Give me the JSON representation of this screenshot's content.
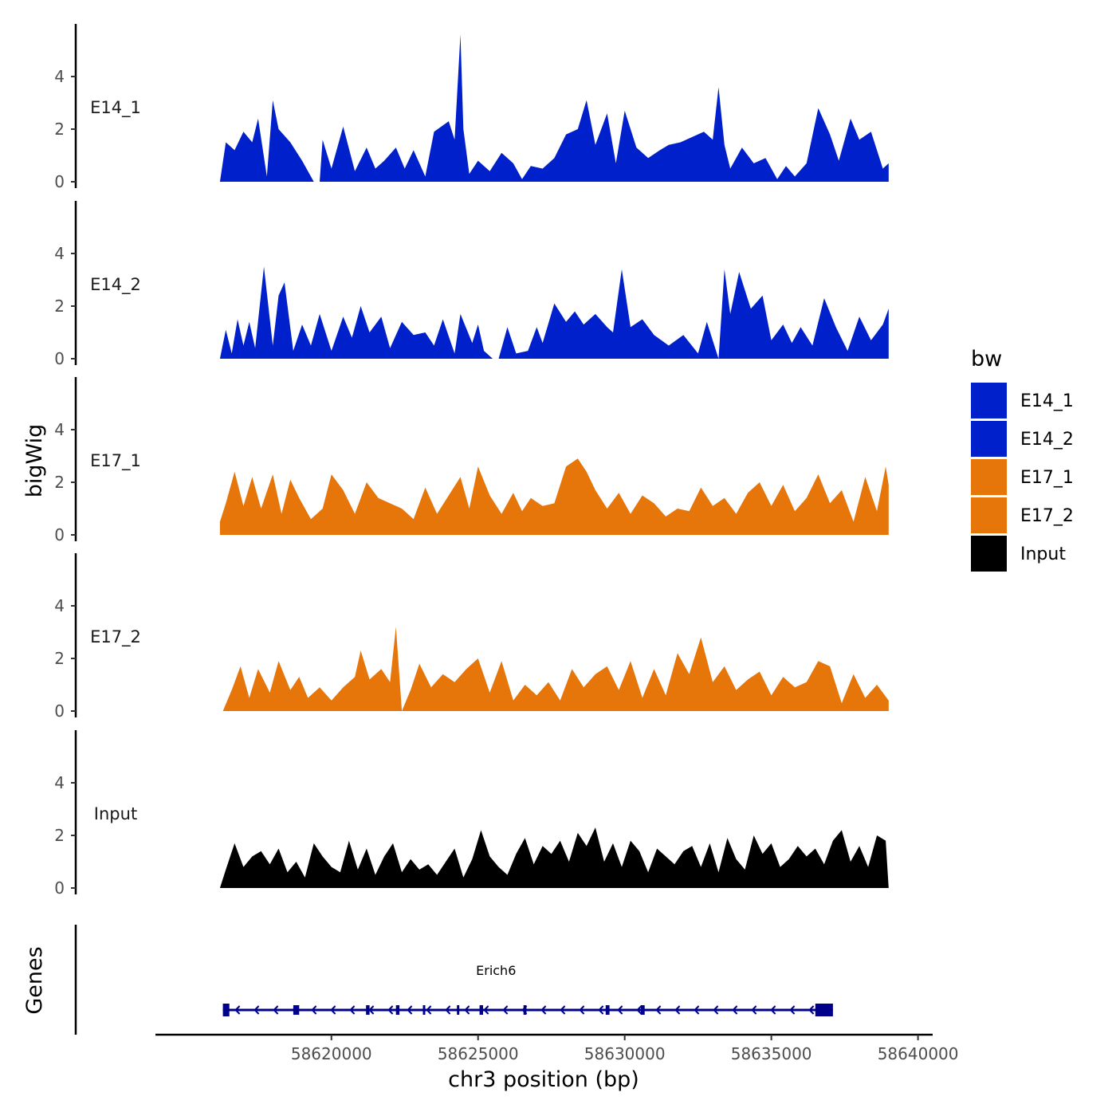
{
  "chart_data": {
    "type": "area",
    "xlabel": "chr3 position (bp)",
    "ylabel": "bigWig",
    "genes_label": "Genes",
    "xlim": [
      58614000,
      58640500
    ],
    "ylim": [
      0,
      6
    ],
    "x_ticks": [
      58620000,
      58625000,
      58630000,
      58635000,
      58640000
    ],
    "x_tick_labels": [
      "58620000",
      "58625000",
      "58630000",
      "58635000",
      "58640000"
    ],
    "y_ticks": [
      0,
      2,
      4
    ],
    "y_tick_labels": [
      "0",
      "2",
      "4"
    ],
    "legend": {
      "title": "bw",
      "position": "right",
      "entries": [
        {
          "name": "E14_1",
          "color": "#0020CC"
        },
        {
          "name": "E14_2",
          "color": "#0020CC"
        },
        {
          "name": "E17_1",
          "color": "#E6750A"
        },
        {
          "name": "E17_2",
          "color": "#E6750A"
        },
        {
          "name": "Input",
          "color": "#000000"
        }
      ]
    },
    "series": [
      {
        "name": "E14_1",
        "label": "E14_1",
        "color": "#0020CC",
        "x": [
          58616200,
          58616400,
          58616700,
          58617000,
          58617300,
          58617500,
          58617800,
          58618000,
          58618200,
          58618600,
          58619000,
          58619400,
          58619600,
          58619700,
          58620000,
          58620400,
          58620800,
          58621200,
          58621500,
          58621800,
          58622200,
          58622500,
          58622800,
          58623200,
          58623500,
          58624000,
          58624200,
          58624400,
          58624500,
          58624700,
          58625000,
          58625400,
          58625800,
          58626200,
          58626500,
          58626800,
          58627200,
          58627600,
          58628000,
          58628400,
          58628700,
          58629000,
          58629400,
          58629700,
          58630000,
          58630400,
          58630800,
          58631200,
          58631500,
          58631900,
          58632300,
          58632700,
          58633000,
          58633200,
          58633400,
          58633600,
          58634000,
          58634400,
          58634800,
          58635200,
          58635500,
          58635800,
          58636200,
          58636600,
          58637000,
          58637300,
          58637700,
          58638000,
          58638400,
          58638800,
          58639000
        ],
        "values": [
          0.0,
          1.5,
          1.2,
          1.9,
          1.5,
          2.4,
          0.2,
          3.1,
          2.0,
          1.5,
          0.8,
          0.0,
          0.0,
          1.6,
          0.5,
          2.1,
          0.4,
          1.3,
          0.5,
          0.8,
          1.3,
          0.5,
          1.2,
          0.2,
          1.9,
          2.3,
          1.6,
          5.6,
          2.0,
          0.3,
          0.8,
          0.4,
          1.1,
          0.7,
          0.1,
          0.6,
          0.5,
          0.9,
          1.8,
          2.0,
          3.1,
          1.4,
          2.6,
          0.7,
          2.7,
          1.3,
          0.9,
          1.2,
          1.4,
          1.5,
          1.7,
          1.9,
          1.6,
          3.6,
          1.4,
          0.5,
          1.3,
          0.7,
          0.9,
          0.1,
          0.6,
          0.2,
          0.7,
          2.8,
          1.8,
          0.8,
          2.4,
          1.6,
          1.9,
          0.5,
          0.7
        ]
      },
      {
        "name": "E14_2",
        "label": "E14_2",
        "color": "#0020CC",
        "x": [
          58616200,
          58616400,
          58616600,
          58616800,
          58617000,
          58617200,
          58617400,
          58617700,
          58618000,
          58618200,
          58618400,
          58618700,
          58619000,
          58619300,
          58619600,
          58620000,
          58620400,
          58620700,
          58621000,
          58621300,
          58621700,
          58622000,
          58622400,
          58622800,
          58623200,
          58623500,
          58623800,
          58624200,
          58624400,
          58624800,
          58625000,
          58625200,
          58625500,
          58625700,
          58626000,
          58626300,
          58626700,
          58627000,
          58627200,
          58627600,
          58628000,
          58628300,
          58628600,
          58629000,
          58629400,
          58629600,
          58629900,
          58630200,
          58630600,
          58631000,
          58631500,
          58632000,
          58632500,
          58632800,
          58633200,
          58633400,
          58633600,
          58633900,
          58634300,
          58634700,
          58635000,
          58635400,
          58635700,
          58636000,
          58636400,
          58636800,
          58637200,
          58637600,
          58638000,
          58638400,
          58638800,
          58639000
        ],
        "values": [
          0.0,
          1.1,
          0.2,
          1.5,
          0.5,
          1.4,
          0.4,
          3.5,
          0.5,
          2.4,
          2.9,
          0.3,
          1.3,
          0.5,
          1.7,
          0.3,
          1.6,
          0.8,
          2.0,
          1.0,
          1.6,
          0.4,
          1.4,
          0.9,
          1.0,
          0.5,
          1.5,
          0.2,
          1.7,
          0.6,
          1.3,
          0.3,
          0.0,
          0.0,
          1.2,
          0.2,
          0.3,
          1.2,
          0.6,
          2.1,
          1.4,
          1.8,
          1.3,
          1.7,
          1.2,
          1.0,
          3.4,
          1.2,
          1.5,
          0.9,
          0.5,
          0.9,
          0.2,
          1.4,
          0.0,
          3.4,
          1.7,
          3.3,
          1.9,
          2.4,
          0.7,
          1.3,
          0.6,
          1.2,
          0.5,
          2.3,
          1.2,
          0.3,
          1.6,
          0.7,
          1.3,
          1.9
        ]
      },
      {
        "name": "E17_1",
        "label": "E17_1",
        "color": "#E6750A",
        "x": [
          58616200,
          58616400,
          58616700,
          58617000,
          58617300,
          58617600,
          58618000,
          58618300,
          58618600,
          58618900,
          58619300,
          58619700,
          58620000,
          58620400,
          58620800,
          58621200,
          58621600,
          58622000,
          58622400,
          58622800,
          58623200,
          58623600,
          58624000,
          58624400,
          58624700,
          58625000,
          58625400,
          58625800,
          58626200,
          58626500,
          58626800,
          58627200,
          58627600,
          58628000,
          58628400,
          58628700,
          58629000,
          58629400,
          58629800,
          58630200,
          58630600,
          58631000,
          58631400,
          58631800,
          58632200,
          58632600,
          58633000,
          58633400,
          58633800,
          58634200,
          58634600,
          58635000,
          58635400,
          58635800,
          58636200,
          58636600,
          58637000,
          58637400,
          58637800,
          58638200,
          58638600,
          58638900,
          58639000
        ],
        "values": [
          0.5,
          1.2,
          2.4,
          1.1,
          2.2,
          1.0,
          2.3,
          0.8,
          2.1,
          1.4,
          0.6,
          1.0,
          2.3,
          1.7,
          0.8,
          2.0,
          1.4,
          1.2,
          1.0,
          0.6,
          1.8,
          0.8,
          1.5,
          2.2,
          1.0,
          2.6,
          1.5,
          0.8,
          1.6,
          0.9,
          1.4,
          1.1,
          1.2,
          2.6,
          2.9,
          2.4,
          1.7,
          1.0,
          1.6,
          0.8,
          1.5,
          1.2,
          0.7,
          1.0,
          0.9,
          1.8,
          1.1,
          1.4,
          0.8,
          1.6,
          2.0,
          1.1,
          1.9,
          0.9,
          1.4,
          2.3,
          1.2,
          1.7,
          0.5,
          2.2,
          0.9,
          2.6,
          1.9
        ]
      },
      {
        "name": "E17_2",
        "label": "E17_2",
        "color": "#E6750A",
        "x": [
          58616300,
          58616600,
          58616900,
          58617200,
          58617500,
          58617900,
          58618200,
          58618600,
          58618900,
          58619200,
          58619600,
          58620000,
          58620400,
          58620800,
          58621000,
          58621300,
          58621700,
          58622000,
          58622200,
          58622400,
          58622700,
          58623000,
          58623400,
          58623800,
          58624200,
          58624600,
          58625000,
          58625400,
          58625800,
          58626200,
          58626600,
          58627000,
          58627400,
          58627800,
          58628200,
          58628600,
          58629000,
          58629400,
          58629800,
          58630200,
          58630600,
          58631000,
          58631400,
          58631800,
          58632200,
          58632600,
          58633000,
          58633400,
          58633800,
          58634200,
          58634600,
          58635000,
          58635400,
          58635800,
          58636200,
          58636600,
          58637000,
          58637400,
          58637800,
          58638200,
          58638600,
          58639000
        ],
        "values": [
          0.0,
          0.8,
          1.7,
          0.5,
          1.6,
          0.7,
          1.9,
          0.8,
          1.3,
          0.5,
          0.9,
          0.4,
          0.9,
          1.3,
          2.3,
          1.2,
          1.6,
          1.1,
          3.2,
          0.0,
          0.8,
          1.8,
          0.9,
          1.4,
          1.1,
          1.6,
          2.0,
          0.7,
          1.9,
          0.4,
          1.0,
          0.6,
          1.1,
          0.4,
          1.6,
          0.9,
          1.4,
          1.7,
          0.8,
          1.9,
          0.5,
          1.6,
          0.6,
          2.2,
          1.4,
          2.8,
          1.1,
          1.7,
          0.8,
          1.2,
          1.5,
          0.6,
          1.3,
          0.9,
          1.1,
          1.9,
          1.7,
          0.3,
          1.4,
          0.5,
          1.0,
          0.4
        ]
      },
      {
        "name": "Input",
        "label": "Input",
        "color": "#000000",
        "x": [
          58616200,
          58616400,
          58616700,
          58617000,
          58617300,
          58617600,
          58617900,
          58618200,
          58618500,
          58618800,
          58619100,
          58619400,
          58619700,
          58620000,
          58620300,
          58620600,
          58620900,
          58621200,
          58621500,
          58621800,
          58622100,
          58622400,
          58622700,
          58623000,
          58623300,
          58623600,
          58623900,
          58624200,
          58624500,
          58624800,
          58625100,
          58625400,
          58625700,
          58626000,
          58626300,
          58626600,
          58626900,
          58627200,
          58627500,
          58627800,
          58628100,
          58628400,
          58628700,
          58629000,
          58629300,
          58629600,
          58629900,
          58630200,
          58630500,
          58630800,
          58631100,
          58631400,
          58631700,
          58632000,
          58632300,
          58632600,
          58632900,
          58633200,
          58633500,
          58633800,
          58634100,
          58634400,
          58634700,
          58635000,
          58635300,
          58635600,
          58635900,
          58636200,
          58636500,
          58636800,
          58637100,
          58637400,
          58637700,
          58638000,
          58638300,
          58638600,
          58638900,
          58639000
        ],
        "values": [
          0.0,
          0.7,
          1.7,
          0.8,
          1.2,
          1.4,
          0.9,
          1.5,
          0.6,
          1.0,
          0.4,
          1.7,
          1.2,
          0.8,
          0.6,
          1.8,
          0.7,
          1.5,
          0.5,
          1.2,
          1.7,
          0.6,
          1.1,
          0.7,
          0.9,
          0.5,
          1.0,
          1.5,
          0.4,
          1.1,
          2.2,
          1.2,
          0.8,
          0.5,
          1.3,
          1.9,
          0.9,
          1.6,
          1.3,
          1.8,
          1.0,
          2.1,
          1.6,
          2.3,
          1.0,
          1.7,
          0.8,
          1.8,
          1.4,
          0.6,
          1.5,
          1.2,
          0.9,
          1.4,
          1.6,
          0.8,
          1.7,
          0.6,
          1.9,
          1.1,
          0.7,
          2.0,
          1.3,
          1.7,
          0.8,
          1.1,
          1.6,
          1.2,
          1.5,
          0.9,
          1.8,
          2.2,
          1.0,
          1.6,
          0.8,
          2.0,
          1.8,
          0.0
        ]
      }
    ],
    "gene": {
      "name": "Erich6",
      "strand": "-",
      "start": 58616300,
      "end": 58637100,
      "color": "#00008B",
      "exons": [
        [
          58616300,
          58616520
        ],
        [
          58618700,
          58618900
        ],
        [
          58621180,
          58621300
        ],
        [
          58622200,
          58622320
        ],
        [
          58623120,
          58623200
        ],
        [
          58624280,
          58624360
        ],
        [
          58625050,
          58625170
        ],
        [
          58626550,
          58626650
        ],
        [
          58629350,
          58629480
        ],
        [
          58630550,
          58630680
        ],
        [
          58636500,
          58637100
        ]
      ]
    }
  }
}
